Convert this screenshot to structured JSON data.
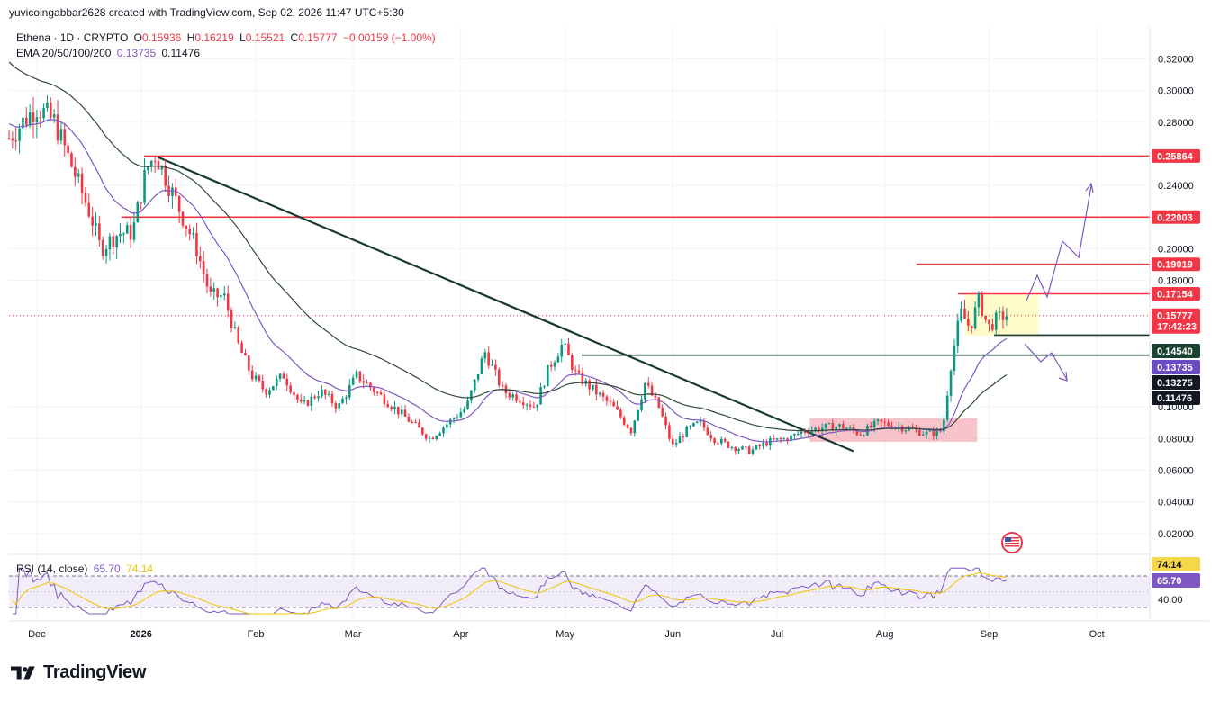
{
  "header": {
    "credit": "yuvicoingabbar2628 created with TradingView.com, Sep 02, 2026 11:47 UTC+5:30"
  },
  "legend": {
    "symbol": "Ethena · 1D · CRYPTO",
    "o_label": "O",
    "o_value": "0.15936",
    "h_label": "H",
    "h_value": "0.16219",
    "l_label": "L",
    "l_value": "0.15521",
    "c_label": "C",
    "c_value": "0.15777",
    "change": "−0.00159 (−1.00%)",
    "ema_label": "EMA 20/50/100/200",
    "ema_val_1": "0.13735",
    "ema_val_2": "0.11476",
    "rsi_label": "RSI (14, close)",
    "rsi_val_1": "65.70",
    "rsi_val_2": "74.14"
  },
  "brand": {
    "name": "TradingView",
    "logo_icon": "tradingview-logo-icon"
  },
  "colors": {
    "up": "#089981",
    "down": "#f23645",
    "level_red": "#f23645",
    "support": "#1b3a2f",
    "ema_fast": "#7e57c2",
    "ema_slow": "#2f4a3a",
    "rsi": "#7e57c2",
    "rsi_ma": "#f2c300",
    "projection": "#7e57c2",
    "zone_pink": "#f5a3ad",
    "zone_yellow": "#fff9c4"
  },
  "chart_data": {
    "type": "candlestick",
    "title": "Ethena · 1D · CRYPTO",
    "ylim": [
      0.0,
      0.33
    ],
    "y_ticks": [
      "0.32000",
      "0.30000",
      "0.28000",
      "0.24000",
      "0.20000",
      "0.18000",
      "0.10000",
      "0.08000",
      "0.06000",
      "0.04000",
      "0.02000"
    ],
    "x_ticks": [
      "Dec",
      "2026",
      "Feb",
      "Mar",
      "Apr",
      "May",
      "Jun",
      "Jul",
      "Aug",
      "Sep",
      "Oct"
    ],
    "price_path": [
      [
        0,
        0.27
      ],
      [
        6,
        0.29
      ],
      [
        10,
        0.28
      ],
      [
        14,
        0.25
      ],
      [
        18,
        0.22
      ],
      [
        20,
        0.2
      ],
      [
        24,
        0.21
      ],
      [
        27,
        0.21
      ],
      [
        30,
        0.25
      ],
      [
        32,
        0.26
      ],
      [
        35,
        0.24
      ],
      [
        38,
        0.22
      ],
      [
        41,
        0.2
      ],
      [
        44,
        0.17
      ],
      [
        47,
        0.17
      ],
      [
        50,
        0.14
      ],
      [
        53,
        0.12
      ],
      [
        56,
        0.11
      ],
      [
        60,
        0.12
      ],
      [
        64,
        0.1
      ],
      [
        68,
        0.11
      ],
      [
        72,
        0.1
      ],
      [
        76,
        0.12
      ],
      [
        80,
        0.11
      ],
      [
        84,
        0.1
      ],
      [
        88,
        0.09
      ],
      [
        92,
        0.08
      ],
      [
        96,
        0.09
      ],
      [
        100,
        0.1
      ],
      [
        104,
        0.135
      ],
      [
        108,
        0.11
      ],
      [
        112,
        0.105
      ],
      [
        115,
        0.1
      ],
      [
        118,
        0.125
      ],
      [
        121,
        0.14
      ],
      [
        124,
        0.12
      ],
      [
        128,
        0.11
      ],
      [
        132,
        0.1
      ],
      [
        136,
        0.085
      ],
      [
        139,
        0.115
      ],
      [
        142,
        0.1
      ],
      [
        145,
        0.075
      ],
      [
        148,
        0.085
      ],
      [
        151,
        0.09
      ],
      [
        154,
        0.08
      ],
      [
        158,
        0.075
      ],
      [
        162,
        0.072
      ],
      [
        166,
        0.078
      ],
      [
        170,
        0.08
      ],
      [
        174,
        0.085
      ],
      [
        178,
        0.087
      ],
      [
        182,
        0.088
      ],
      [
        186,
        0.083
      ],
      [
        190,
        0.09
      ],
      [
        194,
        0.088
      ],
      [
        198,
        0.085
      ],
      [
        201,
        0.083
      ],
      [
        204,
        0.085
      ],
      [
        206,
        0.13
      ],
      [
        208,
        0.16
      ],
      [
        210,
        0.15
      ],
      [
        212,
        0.168
      ],
      [
        214,
        0.15
      ],
      [
        216,
        0.156
      ],
      [
        218,
        0.158
      ]
    ],
    "ema_20_50_100_200": [
      "0.13735",
      "0.11476"
    ],
    "levels": {
      "resistance": [
        "0.25864",
        "0.22003",
        "0.19019",
        "0.17154"
      ],
      "support": [
        "0.14540",
        "0.13735",
        "0.13275",
        "0.11476"
      ],
      "last_price": "0.15777",
      "countdown": "17:42:23"
    },
    "rsi": {
      "period": 14,
      "value": "65.70",
      "ma": "74.14",
      "tick": "40.00",
      "band": [
        30,
        70
      ]
    }
  }
}
